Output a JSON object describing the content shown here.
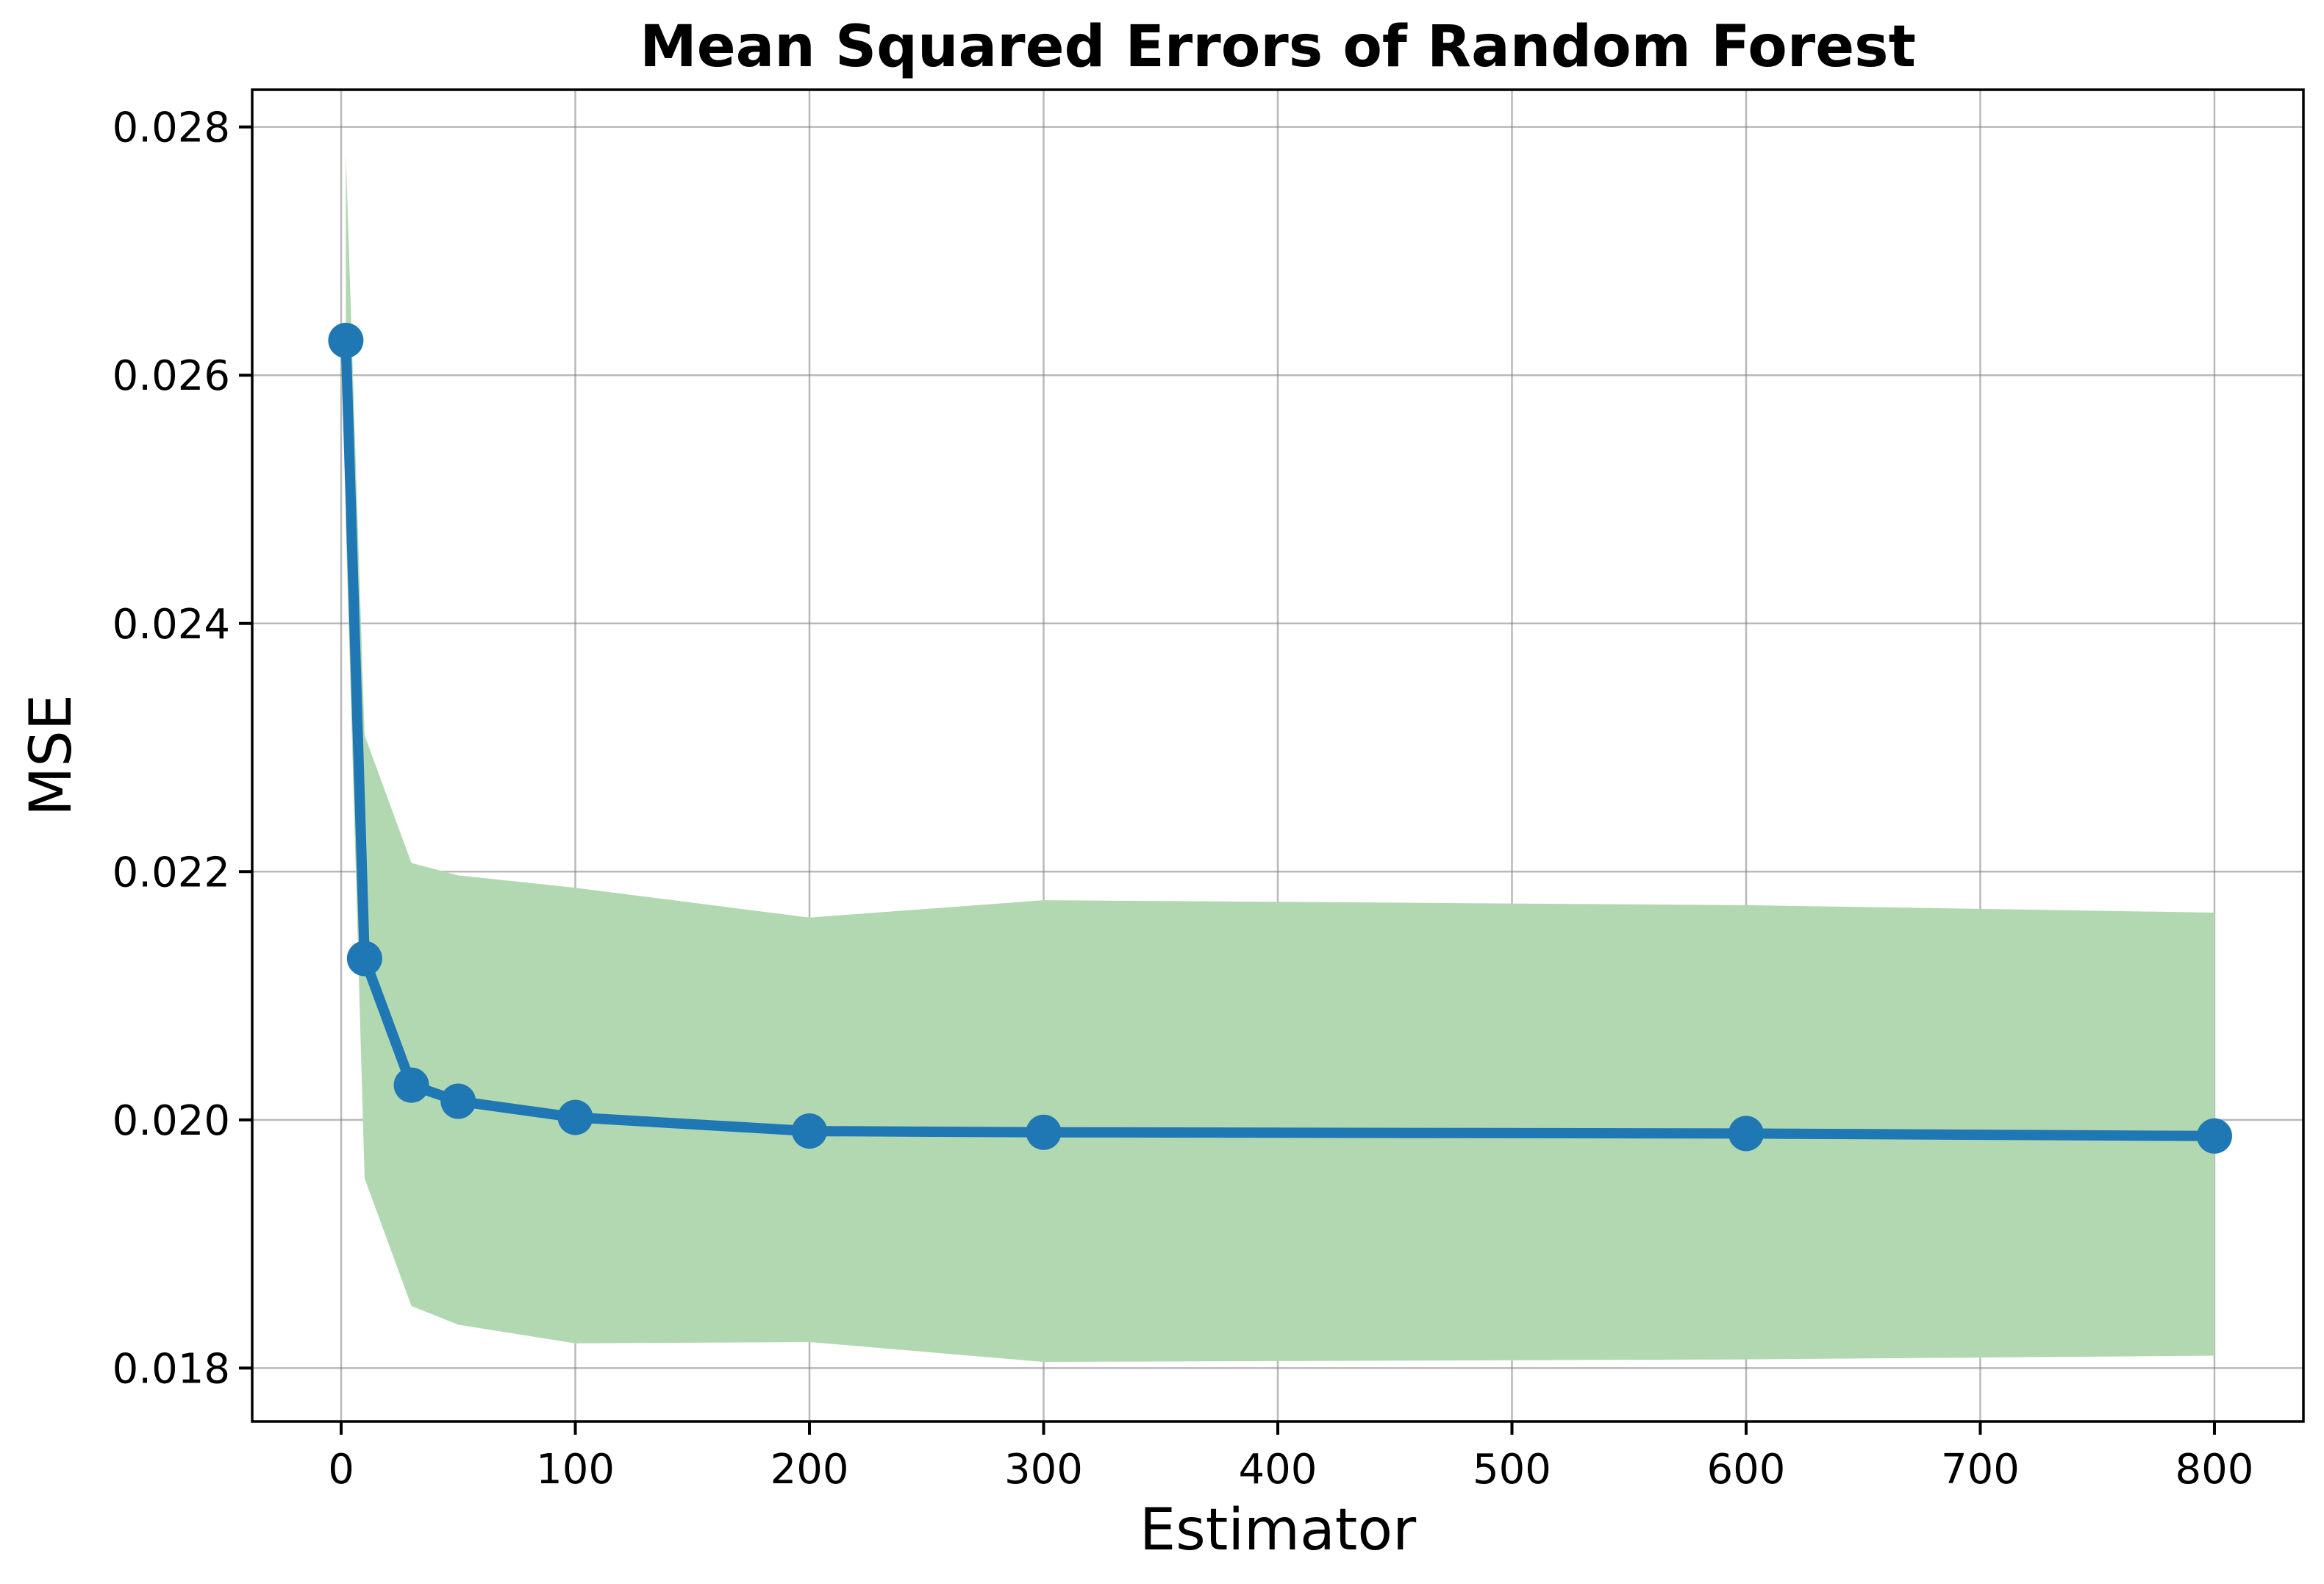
{
  "chart_data": {
    "type": "line",
    "title": "Mean Squared Errors of Random Forest",
    "xlabel": "Estimator",
    "ylabel": "MSE",
    "xlim": [
      -38,
      838
    ],
    "ylim": [
      0.01757,
      0.0283
    ],
    "xticks": [
      0,
      100,
      200,
      300,
      400,
      500,
      600,
      700,
      800
    ],
    "xtick_labels": [
      "0",
      "100",
      "200",
      "300",
      "400",
      "500",
      "600",
      "700",
      "800"
    ],
    "yticks": [
      0.018,
      0.02,
      0.022,
      0.024,
      0.026,
      0.028
    ],
    "ytick_labels": [
      "0.018",
      "0.020",
      "0.022",
      "0.024",
      "0.026",
      "0.028"
    ],
    "grid": true,
    "series": [
      {
        "x": [
          2,
          10,
          30,
          50,
          100,
          200,
          300,
          600,
          800
        ],
        "values": [
          0.02628,
          0.0213,
          0.02028,
          0.02015,
          0.02002,
          0.01991,
          0.0199,
          0.01989,
          0.01987
        ],
        "color": "#1f77b4",
        "marker": "circle"
      }
    ],
    "band": {
      "x": [
        2,
        10,
        30,
        50,
        100,
        200,
        300,
        600,
        800
      ],
      "upper": [
        0.02778,
        0.0231,
        0.02207,
        0.02197,
        0.02187,
        0.02163,
        0.02177,
        0.02173,
        0.02167
      ],
      "lower": [
        0.02478,
        0.01953,
        0.0185,
        0.01835,
        0.0182,
        0.01821,
        0.01805,
        0.01807,
        0.0181
      ],
      "color": "#b2d8b2"
    }
  }
}
